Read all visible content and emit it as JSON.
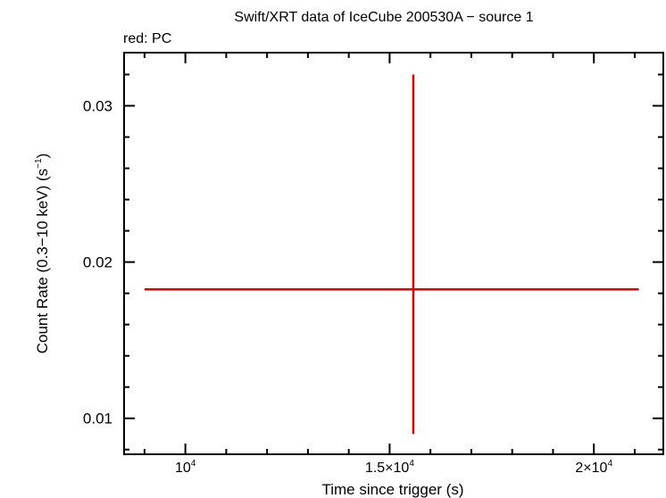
{
  "chart_data": {
    "type": "scatter",
    "title": "Swift/XRT data of IceCube 200530A − source 1",
    "subtitle": "red: PC",
    "xlabel": "Time since trigger (s)",
    "ylabel": "Count Rate (0.3−10 keV) (s",
    "ylabel_sup": "−1",
    "ylabel_end": ")",
    "xlim": [
      8500,
      21700
    ],
    "ylim": [
      0.0077,
      0.0334
    ],
    "x_ticks": [
      {
        "value": 10000,
        "mantissa": "10",
        "exp": "4"
      },
      {
        "value": 15000,
        "mantissa": "1.5×10",
        "exp": "4"
      },
      {
        "value": 20000,
        "mantissa": "2×10",
        "exp": "4"
      }
    ],
    "y_ticks": [
      {
        "value": 0.01,
        "label": "0.01"
      },
      {
        "value": 0.02,
        "label": "0.02"
      },
      {
        "value": 0.03,
        "label": "0.03"
      }
    ],
    "series": [
      {
        "color": "#e00000",
        "points": [
          {
            "x": 15580,
            "y": 0.01825,
            "x_err": [
              6580,
              5520
            ],
            "y_err": [
              0.00925,
              0.01375
            ]
          }
        ]
      }
    ]
  }
}
